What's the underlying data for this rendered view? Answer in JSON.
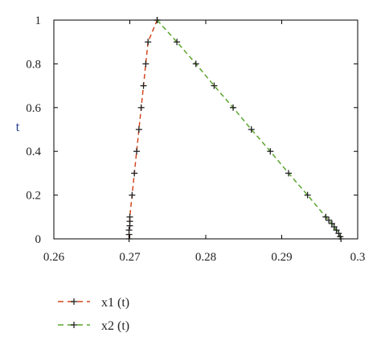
{
  "chart_data": {
    "type": "line",
    "title": "",
    "xlabel": "",
    "ylabel": "t",
    "xlim": [
      0.26,
      0.3
    ],
    "ylim": [
      0,
      1
    ],
    "x_ticks": [
      "0.26",
      "0.27",
      "0.28",
      "0.29",
      "0.3"
    ],
    "y_ticks": [
      "0",
      "0.2",
      "0.4",
      "0.6",
      "0.8",
      "1"
    ],
    "grid": false,
    "legend_position": "bottom-left",
    "series": [
      {
        "name": "x1 (t)",
        "color": "#d2461e",
        "marker": "plus",
        "line_style": "dashed",
        "points": [
          [
            0.2699,
            0.0
          ],
          [
            0.2699,
            0.02
          ],
          [
            0.2699,
            0.04
          ],
          [
            0.27,
            0.06
          ],
          [
            0.27,
            0.08
          ],
          [
            0.27,
            0.1
          ],
          [
            0.2703,
            0.2
          ],
          [
            0.2706,
            0.3
          ],
          [
            0.2709,
            0.4
          ],
          [
            0.2712,
            0.5
          ],
          [
            0.2715,
            0.6
          ],
          [
            0.2718,
            0.7
          ],
          [
            0.2721,
            0.8
          ],
          [
            0.2724,
            0.9
          ],
          [
            0.2736,
            1.0
          ]
        ]
      },
      {
        "name": "x2 (t)",
        "color": "#5aa52d",
        "marker": "plus",
        "line_style": "dashed",
        "points": [
          [
            0.2736,
            1.0
          ],
          [
            0.2762,
            0.9
          ],
          [
            0.2787,
            0.8
          ],
          [
            0.2811,
            0.7
          ],
          [
            0.2836,
            0.6
          ],
          [
            0.286,
            0.5
          ],
          [
            0.2885,
            0.4
          ],
          [
            0.2909,
            0.3
          ],
          [
            0.2934,
            0.2
          ],
          [
            0.2958,
            0.1
          ],
          [
            0.2962,
            0.085
          ],
          [
            0.2966,
            0.07
          ],
          [
            0.2969,
            0.055
          ],
          [
            0.2972,
            0.04
          ],
          [
            0.2975,
            0.025
          ],
          [
            0.2977,
            0.01
          ],
          [
            0.2978,
            0.0
          ]
        ]
      }
    ]
  }
}
